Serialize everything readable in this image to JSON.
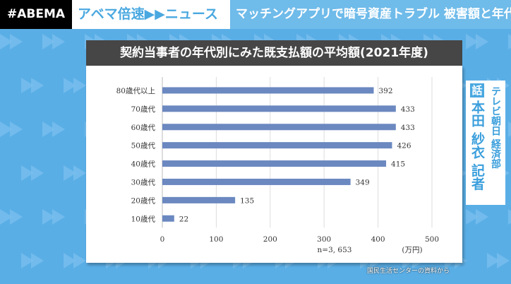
{
  "header": {
    "logo": "#ABEMA",
    "program": "アベマ倍速▶▶ニュース",
    "headline": "マッチングアプリで暗号資産トラブル 被害額と年代は"
  },
  "reporter": {
    "badge": "話",
    "name": "本田 紗衣 記者",
    "org": "テレビ朝日 経済部"
  },
  "source": "国民生活センターの資料から",
  "chart_data": {
    "type": "bar",
    "orientation": "horizontal",
    "title": "契約当事者の年代別にみた既支払額の平均額(2021年度)",
    "categories": [
      "80歳代以上",
      "70歳代",
      "60歳代",
      "50歳代",
      "40歳代",
      "30歳代",
      "20歳代",
      "10歳代"
    ],
    "values": [
      392,
      433,
      433,
      426,
      415,
      349,
      135,
      22
    ],
    "xlim": [
      0,
      500
    ],
    "xticks": [
      0,
      100,
      200,
      300,
      400,
      500
    ],
    "unit": "(万円)",
    "note": "n=3, 653",
    "grid": true,
    "bar_color": "#6b88c0"
  }
}
